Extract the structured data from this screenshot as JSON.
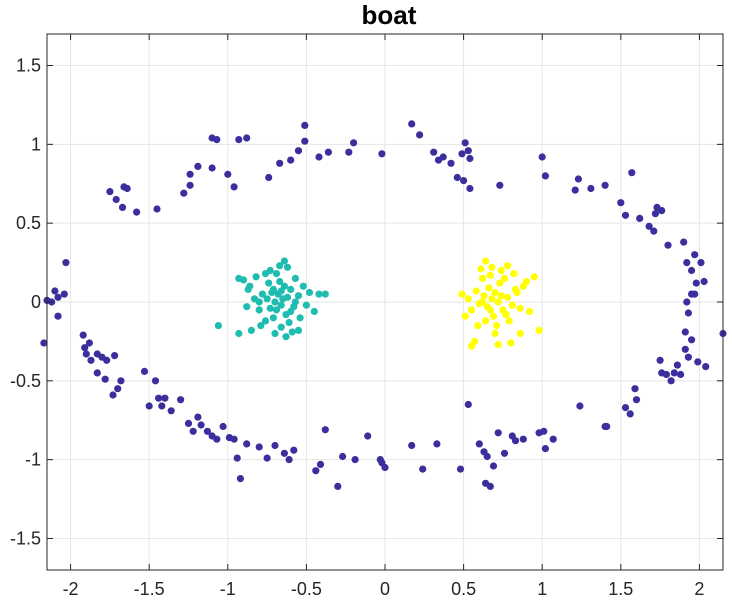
{
  "chart_data": {
    "type": "scatter",
    "title": "boat",
    "xlabel": "",
    "ylabel": "",
    "xlim": [
      -2.15,
      2.15
    ],
    "ylim": [
      -1.7,
      1.7
    ],
    "grid": true,
    "xticks": [
      -2,
      -1.5,
      -1,
      -0.5,
      0,
      0.5,
      1,
      1.5,
      2
    ],
    "yticks": [
      -1.5,
      -1,
      -0.5,
      0,
      0.5,
      1,
      1.5
    ],
    "xtick_labels": [
      "-2",
      "-1.5",
      "-1",
      "-0.5",
      "0",
      "0.5",
      "1",
      "1.5",
      "2"
    ],
    "ytick_labels": [
      "-1.5",
      "-1",
      "-0.5",
      "0",
      "0.5",
      "1",
      "1.5"
    ],
    "series": [
      {
        "color": "#3b2f9e",
        "points": [
          [
            -2.1,
            0.07
          ],
          [
            -2.12,
            0.0
          ],
          [
            -2.15,
            0.01
          ],
          [
            -2.03,
            0.25
          ],
          [
            -2.08,
            0.03
          ],
          [
            -2.04,
            0.05
          ],
          [
            -2.17,
            -0.26
          ],
          [
            -2.08,
            -0.09
          ],
          [
            -1.92,
            -0.21
          ],
          [
            -1.91,
            -0.29
          ],
          [
            -1.88,
            -0.26
          ],
          [
            -1.9,
            -0.33
          ],
          [
            -1.87,
            -0.37
          ],
          [
            -1.83,
            -0.33
          ],
          [
            -1.8,
            -0.35
          ],
          [
            -1.77,
            -0.37
          ],
          [
            -1.83,
            -0.45
          ],
          [
            -1.72,
            -0.34
          ],
          [
            -1.78,
            -0.49
          ],
          [
            -1.7,
            -0.55
          ],
          [
            -1.73,
            -0.59
          ],
          [
            -1.68,
            -0.5
          ],
          [
            -1.5,
            -0.66
          ],
          [
            -1.53,
            -0.44
          ],
          [
            -1.46,
            -0.5
          ],
          [
            -1.44,
            -0.61
          ],
          [
            -1.42,
            -0.66
          ],
          [
            -1.4,
            -0.61
          ],
          [
            -1.36,
            -0.69
          ],
          [
            -1.3,
            -0.62
          ],
          [
            -1.25,
            -0.77
          ],
          [
            -1.22,
            -0.82
          ],
          [
            -1.19,
            -0.73
          ],
          [
            -1.17,
            -0.78
          ],
          [
            -1.13,
            -0.82
          ],
          [
            -1.1,
            -0.85
          ],
          [
            -1.07,
            -0.87
          ],
          [
            -1.03,
            -0.79
          ],
          [
            -0.99,
            -0.86
          ],
          [
            -0.96,
            -0.87
          ],
          [
            -0.94,
            -0.99
          ],
          [
            -0.92,
            -1.12
          ],
          [
            -0.88,
            -0.9
          ],
          [
            -0.8,
            -0.92
          ],
          [
            -0.75,
            -0.99
          ],
          [
            -0.7,
            -0.91
          ],
          [
            -0.64,
            -0.96
          ],
          [
            -0.61,
            -1.0
          ],
          [
            -0.58,
            -0.94
          ],
          [
            -0.44,
            -1.07
          ],
          [
            -0.41,
            -1.03
          ],
          [
            -0.38,
            -0.81
          ],
          [
            -0.3,
            -1.17
          ],
          [
            -0.27,
            -0.98
          ],
          [
            -0.19,
            -1.0
          ],
          [
            -0.11,
            -0.85
          ],
          [
            -0.02,
            -1.02
          ],
          [
            0.0,
            -1.05
          ],
          [
            -0.03,
            -1.0
          ],
          [
            0.17,
            -0.91
          ],
          [
            0.24,
            -1.06
          ],
          [
            0.33,
            -0.9
          ],
          [
            0.48,
            -1.06
          ],
          [
            0.53,
            -0.65
          ],
          [
            0.6,
            -0.9
          ],
          [
            0.63,
            -0.95
          ],
          [
            0.65,
            -0.98
          ],
          [
            0.64,
            -1.15
          ],
          [
            0.67,
            -1.17
          ],
          [
            0.69,
            -1.04
          ],
          [
            0.72,
            -0.83
          ],
          [
            0.76,
            -0.96
          ],
          [
            0.81,
            -0.85
          ],
          [
            0.83,
            -0.88
          ],
          [
            0.88,
            -0.87
          ],
          [
            0.98,
            -0.83
          ],
          [
            1.02,
            -0.93
          ],
          [
            1.01,
            -0.82
          ],
          [
            1.07,
            -0.87
          ],
          [
            1.24,
            -0.66
          ],
          [
            1.4,
            -0.79
          ],
          [
            1.41,
            -0.79
          ],
          [
            1.53,
            -0.67
          ],
          [
            1.56,
            -0.71
          ],
          [
            1.59,
            -0.55
          ],
          [
            1.6,
            -0.62
          ],
          [
            1.75,
            -0.37
          ],
          [
            1.76,
            -0.45
          ],
          [
            1.79,
            -0.46
          ],
          [
            1.82,
            -0.5
          ],
          [
            1.84,
            -0.45
          ],
          [
            1.86,
            -0.4
          ],
          [
            1.88,
            -0.46
          ],
          [
            1.91,
            -0.3
          ],
          [
            1.93,
            -0.35
          ],
          [
            1.95,
            -0.24
          ],
          [
            1.99,
            -0.38
          ],
          [
            2.04,
            -0.41
          ],
          [
            1.91,
            -0.19
          ],
          [
            1.93,
            -0.07
          ],
          [
            1.92,
            0.0
          ],
          [
            1.95,
            0.05
          ],
          [
            1.97,
            0.05
          ],
          [
            1.98,
            0.12
          ],
          [
            2.03,
            0.13
          ],
          [
            1.92,
            0.25
          ],
          [
            1.95,
            0.2
          ],
          [
            1.97,
            0.3
          ],
          [
            2.01,
            0.25
          ],
          [
            2.15,
            -0.2
          ],
          [
            1.9,
            0.38
          ],
          [
            1.8,
            0.36
          ],
          [
            1.71,
            0.45
          ],
          [
            1.76,
            0.58
          ],
          [
            1.73,
            0.6
          ],
          [
            1.72,
            0.56
          ],
          [
            1.68,
            0.48
          ],
          [
            1.62,
            0.53
          ],
          [
            1.53,
            0.55
          ],
          [
            1.5,
            0.63
          ],
          [
            1.57,
            0.82
          ],
          [
            1.4,
            0.74
          ],
          [
            1.31,
            0.72
          ],
          [
            1.21,
            0.71
          ],
          [
            1.23,
            0.78
          ],
          [
            1.02,
            0.8
          ],
          [
            1.0,
            0.92
          ],
          [
            0.73,
            0.74
          ],
          [
            0.54,
            0.72
          ],
          [
            0.5,
            0.77
          ],
          [
            0.46,
            0.79
          ],
          [
            0.54,
            0.91
          ],
          [
            0.53,
            0.96
          ],
          [
            0.49,
            0.94
          ],
          [
            0.42,
            0.88
          ],
          [
            0.37,
            0.92
          ],
          [
            0.34,
            0.9
          ],
          [
            0.31,
            0.95
          ],
          [
            0.22,
            1.06
          ],
          [
            0.17,
            1.13
          ],
          [
            0.51,
            1.01
          ],
          [
            -0.02,
            0.94
          ],
          [
            -0.2,
            1.01
          ],
          [
            -0.23,
            0.95
          ],
          [
            -0.36,
            0.95
          ],
          [
            -0.42,
            0.92
          ],
          [
            -0.51,
            1.02
          ],
          [
            -0.55,
            0.96
          ],
          [
            -0.6,
            0.9
          ],
          [
            -0.67,
            0.88
          ],
          [
            -0.74,
            0.79
          ],
          [
            -0.51,
            1.12
          ],
          [
            -0.88,
            1.04
          ],
          [
            -0.93,
            1.03
          ],
          [
            -0.96,
            0.73
          ],
          [
            -1.0,
            0.81
          ],
          [
            -1.07,
            1.03
          ],
          [
            -1.19,
            0.86
          ],
          [
            -1.24,
            0.74
          ],
          [
            -1.24,
            0.81
          ],
          [
            -1.28,
            0.69
          ],
          [
            -1.45,
            0.59
          ],
          [
            -1.58,
            0.57
          ],
          [
            -1.64,
            0.72
          ],
          [
            -1.66,
            0.73
          ],
          [
            -1.71,
            0.65
          ],
          [
            -1.67,
            0.6
          ],
          [
            -1.75,
            0.7
          ],
          [
            -1.1,
            0.85
          ],
          [
            -1.1,
            1.04
          ]
        ]
      },
      {
        "color": "#1fbcb0",
        "points": [
          [
            -0.68,
            0.05
          ],
          [
            -0.65,
            0.02
          ],
          [
            -0.7,
            0.0
          ],
          [
            -0.62,
            0.03
          ],
          [
            -0.66,
            -0.02
          ],
          [
            -0.72,
            0.06
          ],
          [
            -0.6,
            0.08
          ],
          [
            -0.69,
            -0.05
          ],
          [
            -0.64,
            0.1
          ],
          [
            -0.75,
            0.02
          ],
          [
            -0.58,
            -0.03
          ],
          [
            -0.67,
            0.13
          ],
          [
            -0.71,
            -0.1
          ],
          [
            -0.63,
            -0.08
          ],
          [
            -0.78,
            0.05
          ],
          [
            -0.55,
            0.04
          ],
          [
            -0.74,
            0.12
          ],
          [
            -0.61,
            -0.13
          ],
          [
            -0.69,
            0.18
          ],
          [
            -0.8,
            -0.05
          ],
          [
            -0.52,
            0.1
          ],
          [
            -0.76,
            -0.12
          ],
          [
            -0.57,
            0.15
          ],
          [
            -0.66,
            -0.16
          ],
          [
            -0.83,
            0.02
          ],
          [
            -0.5,
            -0.02
          ],
          [
            -0.73,
            0.2
          ],
          [
            -0.62,
            0.22
          ],
          [
            -0.79,
            -0.15
          ],
          [
            -0.54,
            -0.1
          ],
          [
            -0.86,
            0.1
          ],
          [
            -0.48,
            0.06
          ],
          [
            -0.7,
            -0.2
          ],
          [
            -0.64,
            0.26
          ],
          [
            -0.88,
            -0.03
          ],
          [
            -0.45,
            -0.06
          ],
          [
            -0.82,
            0.16
          ],
          [
            -0.59,
            -0.19
          ],
          [
            -0.9,
            0.14
          ],
          [
            -0.93,
            0.15
          ],
          [
            -0.85,
            -0.18
          ],
          [
            -0.93,
            -0.2
          ],
          [
            -0.42,
            0.05
          ],
          [
            -0.38,
            0.05
          ],
          [
            -0.55,
            -0.18
          ],
          [
            -0.87,
            0.08
          ],
          [
            -1.06,
            -0.15
          ],
          [
            -0.76,
            0.18
          ],
          [
            -0.67,
            0.23
          ],
          [
            -0.63,
            -0.22
          ],
          [
            -0.71,
            0.08
          ],
          [
            -0.6,
            -0.06
          ],
          [
            -0.8,
            0.0
          ],
          [
            -0.57,
            0.0
          ],
          [
            -0.73,
            -0.04
          ],
          [
            -0.66,
            0.07
          ]
        ]
      },
      {
        "color": "#ffff00",
        "points": [
          [
            0.68,
            0.02
          ],
          [
            0.72,
            0.0
          ],
          [
            0.65,
            -0.03
          ],
          [
            0.7,
            0.06
          ],
          [
            0.63,
            0.04
          ],
          [
            0.75,
            -0.05
          ],
          [
            0.66,
            0.09
          ],
          [
            0.78,
            0.03
          ],
          [
            0.6,
            -0.01
          ],
          [
            0.69,
            -0.09
          ],
          [
            0.73,
            0.12
          ],
          [
            0.58,
            0.07
          ],
          [
            0.81,
            -0.02
          ],
          [
            0.64,
            -0.12
          ],
          [
            0.76,
            0.15
          ],
          [
            0.55,
            -0.05
          ],
          [
            0.83,
            0.08
          ],
          [
            0.67,
            0.17
          ],
          [
            0.62,
            0.15
          ],
          [
            0.71,
            -0.15
          ],
          [
            0.86,
            -0.04
          ],
          [
            0.53,
            0.02
          ],
          [
            0.79,
            -0.12
          ],
          [
            0.59,
            -0.15
          ],
          [
            0.74,
            0.2
          ],
          [
            0.68,
            0.22
          ],
          [
            0.88,
            0.1
          ],
          [
            0.51,
            -0.09
          ],
          [
            0.82,
            0.18
          ],
          [
            0.61,
            0.21
          ],
          [
            0.92,
            -0.06
          ],
          [
            0.49,
            0.05
          ],
          [
            0.7,
            -0.2
          ],
          [
            0.78,
            0.23
          ],
          [
            0.95,
            0.16
          ],
          [
            0.98,
            -0.18
          ],
          [
            0.86,
            -0.2
          ],
          [
            0.57,
            -0.25
          ],
          [
            0.55,
            -0.28
          ],
          [
            0.8,
            -0.26
          ],
          [
            0.72,
            -0.27
          ],
          [
            0.64,
            0.26
          ],
          [
            0.9,
            0.13
          ],
          [
            0.84,
            0.06
          ],
          [
            0.67,
            -0.05
          ],
          [
            0.74,
            0.04
          ],
          [
            0.62,
            0.0
          ],
          [
            0.77,
            -0.08
          ]
        ]
      }
    ]
  }
}
